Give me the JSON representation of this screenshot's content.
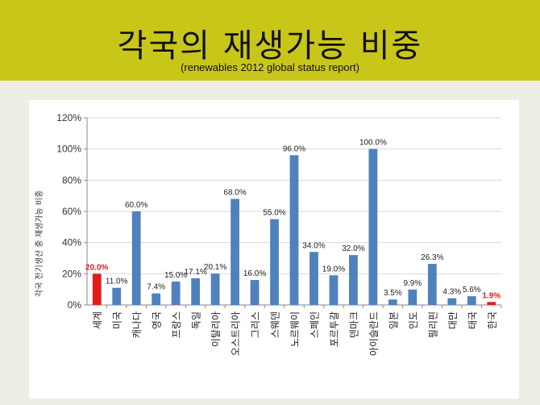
{
  "header": {
    "title": "각국의 재생가능 비중",
    "subtitle": "(renewables 2012 global status report)"
  },
  "colors": {
    "bar": "#4f81bd",
    "highlight": "#e31b1b",
    "header_bg": "#c9c61a"
  },
  "chart_data": {
    "type": "bar",
    "ylabel": "각국 전기생산 중 재생가능 비중",
    "ylim": [
      0,
      120
    ],
    "yticks": [
      "0%",
      "20%",
      "40%",
      "60%",
      "80%",
      "100%",
      "120%"
    ],
    "categories": [
      "세계",
      "미국",
      "캐나다",
      "영국",
      "프랑스",
      "독일",
      "이탈리아",
      "오스트리아",
      "그리스",
      "스웨덴",
      "노르웨이",
      "스페인",
      "포르투갈",
      "덴마크",
      "아이슬란드",
      "일본",
      "인도",
      "필리핀",
      "대만",
      "태국",
      "한국"
    ],
    "values": [
      20.0,
      11.0,
      60.0,
      7.4,
      15.0,
      17.1,
      20.1,
      68.0,
      16.0,
      55.0,
      96.0,
      34.0,
      19.0,
      32.0,
      100.0,
      3.5,
      9.9,
      26.3,
      4.3,
      5.6,
      1.9
    ],
    "labels": [
      "20.0%",
      "11.0%",
      "60.0%",
      "7.4%",
      "15.0%",
      "17.1%",
      "20.1%",
      "68.0%",
      "16.0%",
      "55.0%",
      "96.0%",
      "34.0%",
      "19.0%",
      "32.0%",
      "100.0%",
      "3.5%",
      "9.9%",
      "26.3%",
      "4.3%",
      "5.6%",
      "1.9%"
    ],
    "highlighted": [
      "세계",
      "한국"
    ],
    "grid": true,
    "legend": "none"
  }
}
